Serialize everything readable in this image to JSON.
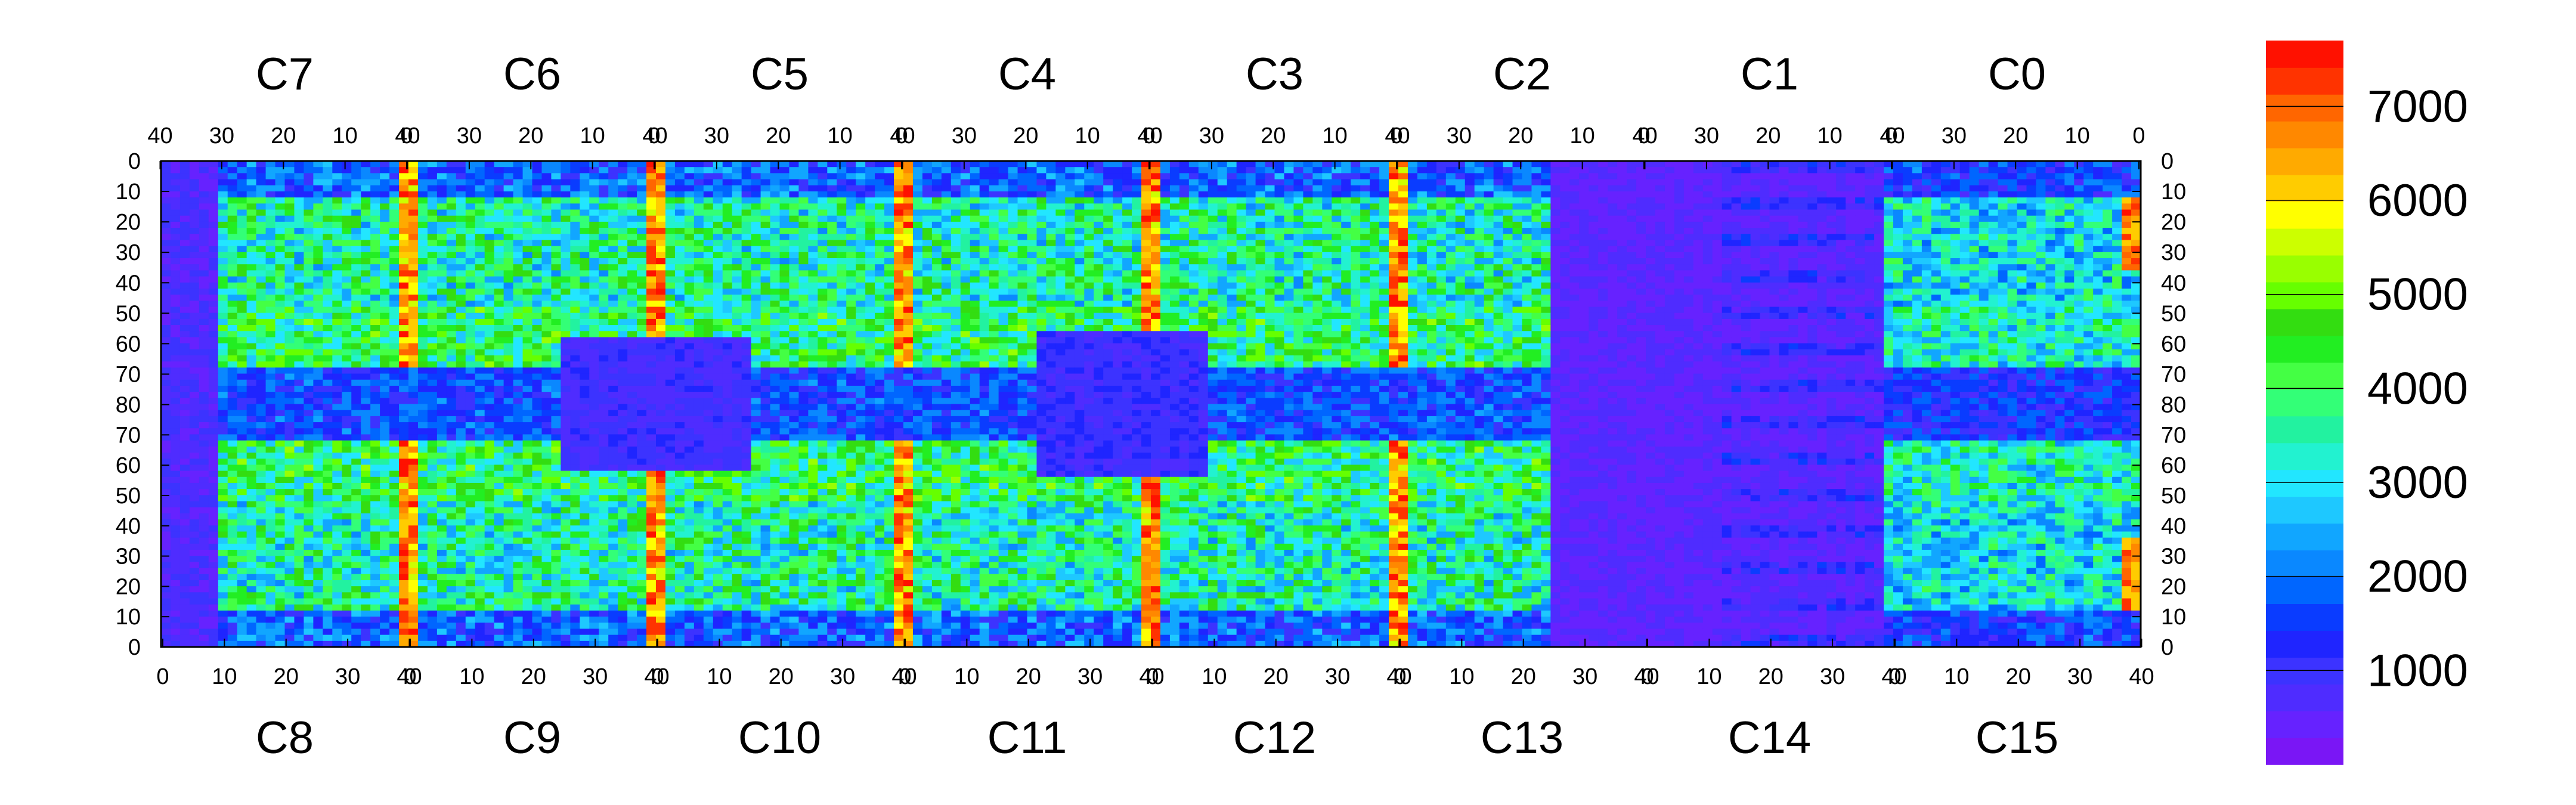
{
  "chart_data": {
    "type": "heatmap",
    "title": "",
    "xlabel": "",
    "ylabel": "",
    "top_chips": [
      "C7",
      "C6",
      "C5",
      "C4",
      "C3",
      "C2",
      "C1",
      "C0"
    ],
    "bottom_chips": [
      "C8",
      "C9",
      "C10",
      "C11",
      "C12",
      "C13",
      "C14",
      "C15"
    ],
    "top_x_ticks": [
      "40",
      "30",
      "20",
      "10",
      "0"
    ],
    "bottom_x_ticks": [
      "0",
      "10",
      "20",
      "30",
      "40"
    ],
    "y_ticks_upper": [
      "0",
      "10",
      "20",
      "30",
      "40",
      "50",
      "60",
      "70",
      "80"
    ],
    "y_ticks_lower": [
      "70",
      "60",
      "50",
      "40",
      "30",
      "20",
      "10",
      "0"
    ],
    "colorbar": {
      "min": 0,
      "max": 7700,
      "tick_values": [
        1000,
        2000,
        3000,
        4000,
        5000,
        6000,
        7000
      ],
      "tick_labels": [
        "1000",
        "2000",
        "3000",
        "4000",
        "5000",
        "6000",
        "7000"
      ],
      "colors": [
        "#7a16f5",
        "#6622ff",
        "#4f2cff",
        "#3c33ff",
        "#1f25ff",
        "#0a3cff",
        "#0066ff",
        "#0a88ff",
        "#11a6ff",
        "#1ec8ff",
        "#22e6ff",
        "#22f2d0",
        "#22f2a0",
        "#33ff77",
        "#44ff44",
        "#22ee22",
        "#33dd11",
        "#66ff00",
        "#99ff00",
        "#ccff00",
        "#ffff00",
        "#ffcc00",
        "#ffaa00",
        "#ff8800",
        "#ff6600",
        "#ff3300",
        "#ff1100"
      ]
    },
    "rows": 160,
    "cols": 416,
    "description_of_map": "Two rows of 8 readout chips; hits concentrated in chip regions with red hot columns near chip boundaries; C13/C14 region largely low (violet)."
  }
}
